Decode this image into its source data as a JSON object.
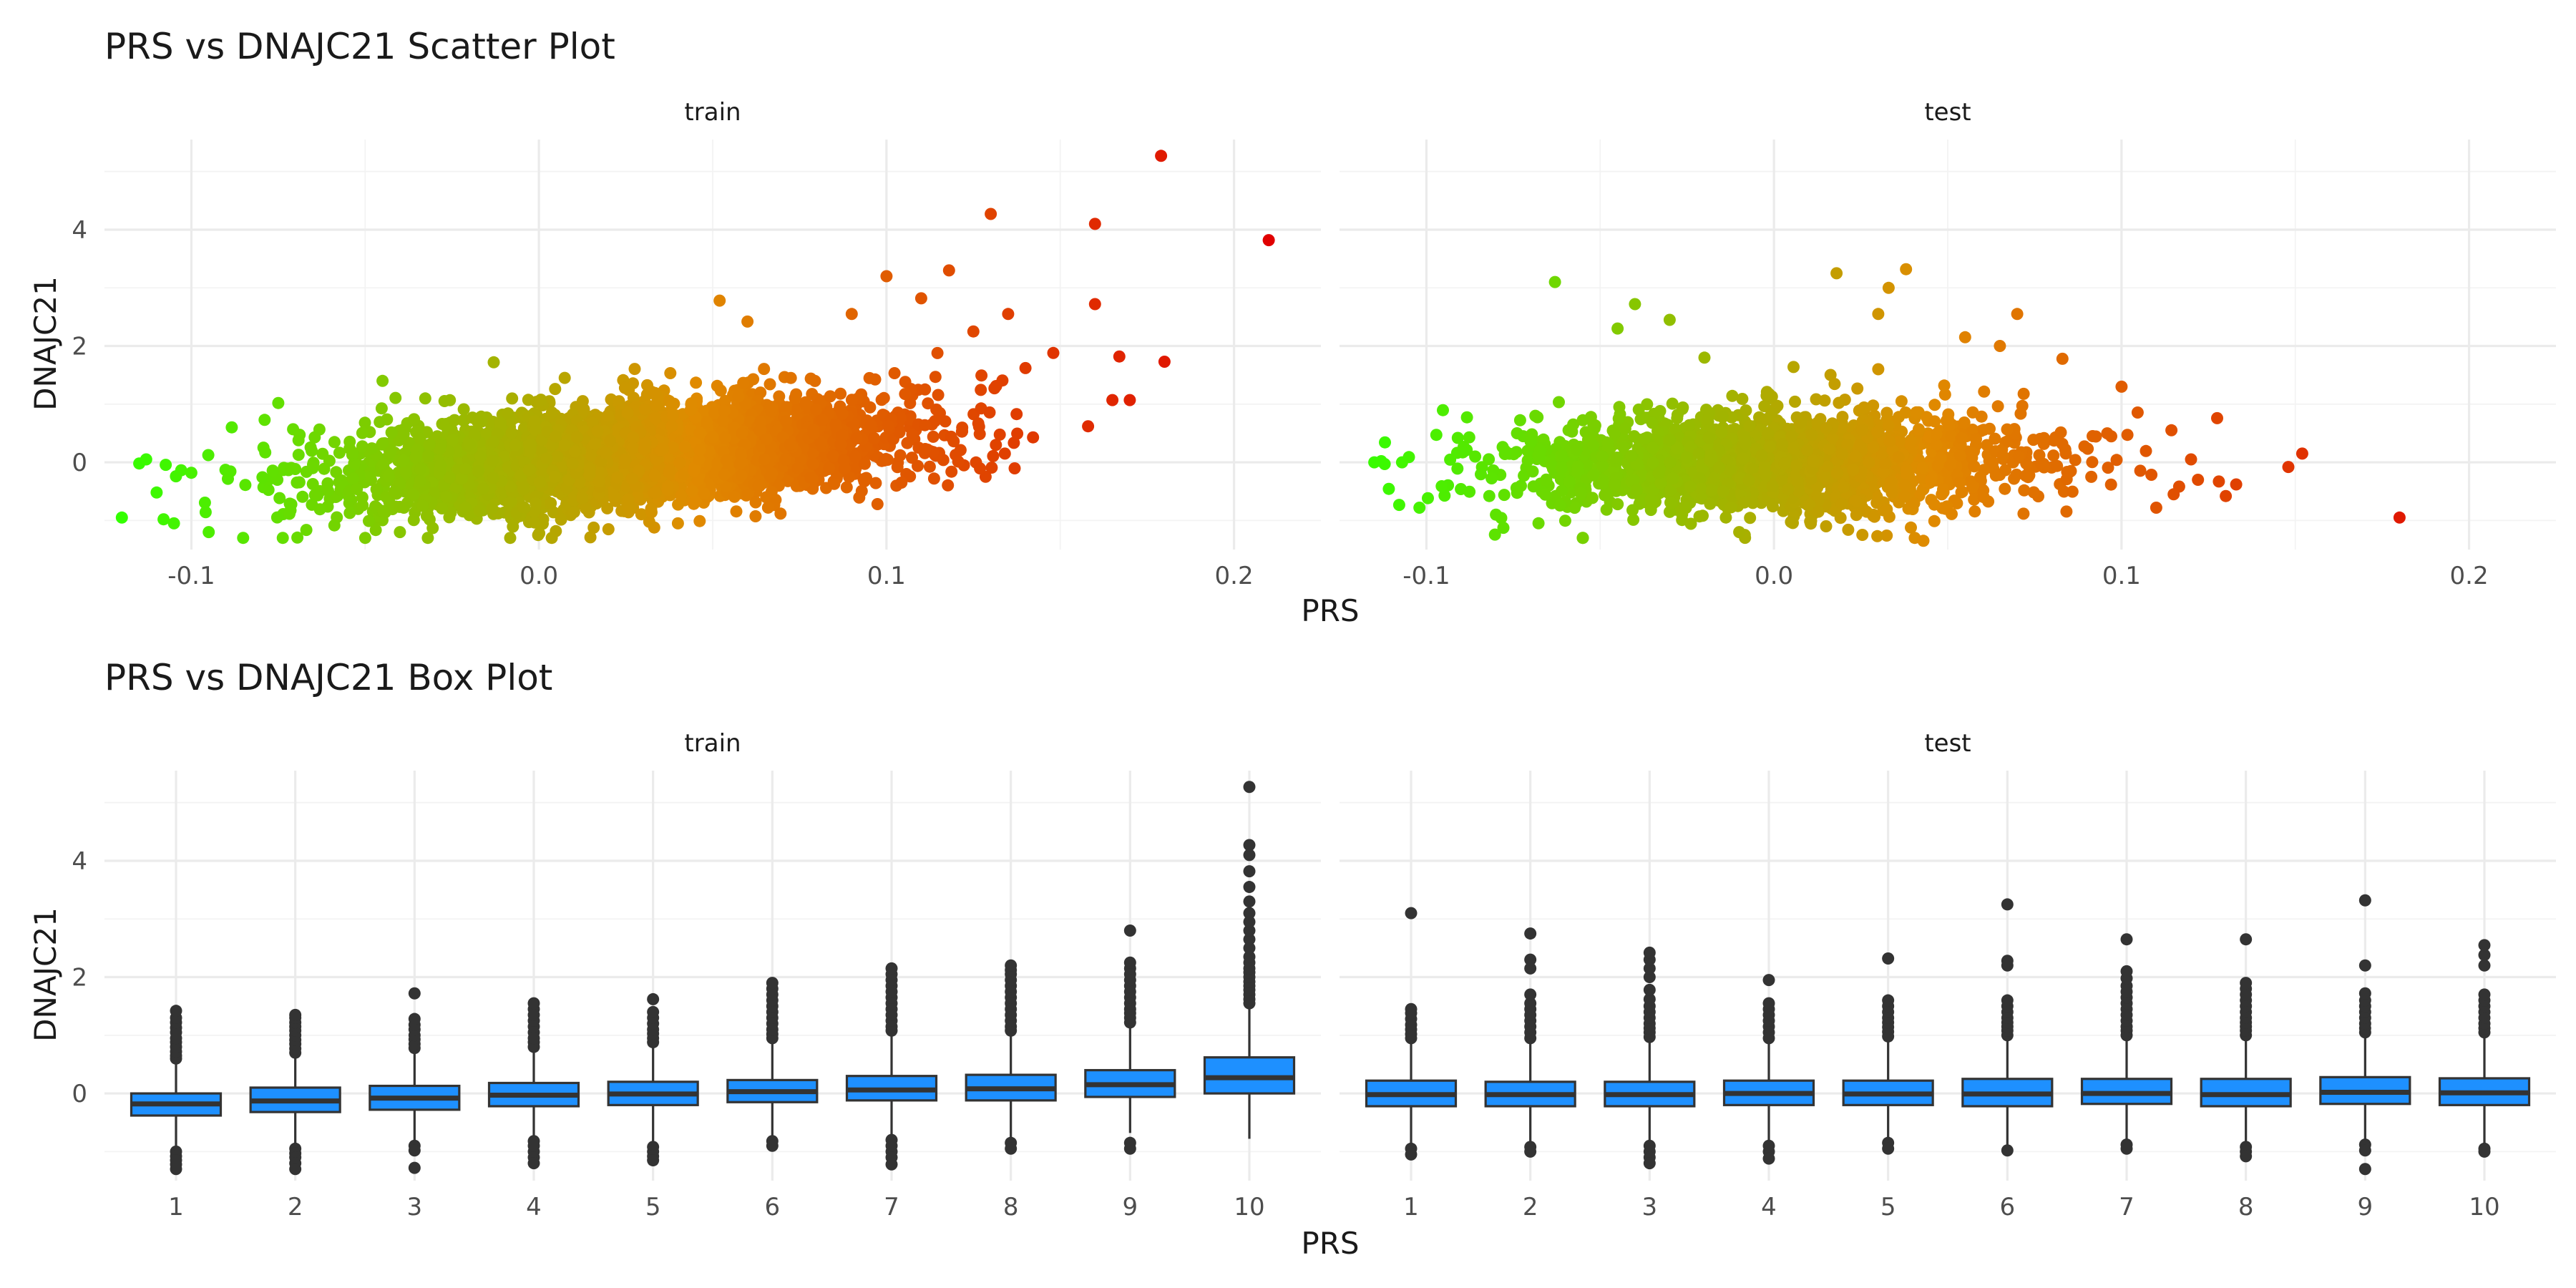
{
  "chart_data": [
    {
      "type": "scatter",
      "title": "PRS vs DNAJC21 Scatter Plot",
      "xlabel": "PRS",
      "ylabel": "DNAJC21",
      "xlim": [
        -0.125,
        0.225
      ],
      "ylim": [
        -1.5,
        5.55
      ],
      "x_ticks": [
        "-0.1",
        "0.0",
        "0.1",
        "0.2"
      ],
      "x_tick_values": [
        -0.1,
        0.0,
        0.1,
        0.2
      ],
      "y_ticks": [
        "0",
        "2",
        "4"
      ],
      "y_tick_values": [
        0,
        2,
        4
      ],
      "color_gradient": [
        "#33ff00",
        "#e08a00",
        "#e00000"
      ],
      "grid": true,
      "panels": [
        {
          "label": "train",
          "cloud": {
            "n": 3800,
            "x_mean": 0.025,
            "x_sd": 0.04,
            "slope": 9.0,
            "noise_sd": 0.42,
            "x_range": [
              -0.12,
              0.145
            ]
          },
          "points": [
            [
              0.179,
              5.27
            ],
            [
              0.13,
              4.27
            ],
            [
              0.16,
              4.1
            ],
            [
              0.21,
              3.82
            ],
            [
              0.118,
              3.3
            ],
            [
              0.16,
              2.72
            ],
            [
              0.167,
              1.82
            ],
            [
              0.18,
              1.73
            ],
            [
              0.165,
              1.07
            ],
            [
              0.17,
              1.07
            ],
            [
              0.158,
              0.62
            ],
            [
              0.135,
              2.55
            ],
            [
              0.14,
              1.62
            ],
            [
              0.148,
              1.88
            ],
            [
              0.11,
              2.82
            ],
            [
              0.1,
              3.2
            ],
            [
              0.09,
              2.55
            ],
            [
              0.125,
              2.25
            ],
            [
              -0.12,
              -0.95
            ],
            [
              -0.115,
              -0.02
            ],
            [
              -0.113,
              0.05
            ],
            [
              -0.108,
              -0.98
            ],
            [
              -0.105,
              -1.05
            ],
            [
              -0.11,
              -0.52
            ],
            [
              -0.1,
              -0.18
            ],
            [
              -0.095,
              -1.2
            ],
            [
              -0.075,
              1.02
            ],
            [
              -0.045,
              1.4
            ],
            [
              -0.013,
              1.72
            ],
            [
              0.06,
              2.42
            ],
            [
              0.052,
              2.78
            ],
            [
              0.02,
              -1.15
            ],
            [
              0.04,
              -1.05
            ],
            [
              -0.04,
              -1.2
            ]
          ]
        },
        {
          "label": "test",
          "cloud": {
            "n": 1800,
            "x_mean": 0.0,
            "x_sd": 0.038,
            "slope": 0.4,
            "noise_sd": 0.45,
            "x_range": [
              -0.115,
              0.14
            ]
          },
          "points": [
            [
              -0.115,
              0.0
            ],
            [
              -0.113,
              0.02
            ],
            [
              -0.112,
              -0.03
            ],
            [
              -0.107,
              0.0
            ],
            [
              -0.102,
              -0.78
            ],
            [
              -0.08,
              -0.9
            ],
            [
              -0.063,
              3.1
            ],
            [
              -0.045,
              2.3
            ],
            [
              -0.04,
              2.72
            ],
            [
              -0.03,
              2.45
            ],
            [
              -0.02,
              1.8
            ],
            [
              0.03,
              1.6
            ],
            [
              0.018,
              3.25
            ],
            [
              0.033,
              3.0
            ],
            [
              0.03,
              2.55
            ],
            [
              0.038,
              3.32
            ],
            [
              0.055,
              2.15
            ],
            [
              0.065,
              2.0
            ],
            [
              0.07,
              2.55
            ],
            [
              0.083,
              1.78
            ],
            [
              0.1,
              1.3
            ],
            [
              0.13,
              -0.58
            ],
            [
              0.128,
              -0.33
            ],
            [
              0.133,
              -0.38
            ],
            [
              0.148,
              -0.08
            ],
            [
              0.152,
              0.15
            ],
            [
              0.18,
              -0.95
            ],
            [
              0.12,
              0.05
            ],
            [
              0.122,
              -0.3
            ],
            [
              0.115,
              -0.55
            ],
            [
              0.11,
              -0.78
            ],
            [
              -0.01,
              -1.2
            ],
            [
              0.015,
              -1.1
            ],
            [
              0.043,
              -1.35
            ]
          ]
        }
      ]
    },
    {
      "type": "box",
      "title": "PRS vs DNAJC21 Box Plot",
      "xlabel": "PRS",
      "ylabel": "DNAJC21",
      "categories": [
        "1",
        "2",
        "3",
        "4",
        "5",
        "6",
        "7",
        "8",
        "9",
        "10"
      ],
      "ylim": [
        -1.5,
        5.55
      ],
      "y_ticks": [
        "0",
        "2",
        "4"
      ],
      "y_tick_values": [
        0,
        2,
        4
      ],
      "box_fill": "#1e90ff",
      "grid": true,
      "panels": [
        {
          "label": "train",
          "boxes": [
            {
              "q1": -0.38,
              "median": -0.18,
              "q3": 0.0,
              "whisker_low": -0.95,
              "whisker_high": 0.55,
              "outliers": [
                0.6,
                0.65,
                0.72,
                0.8,
                0.88,
                0.95,
                1.05,
                1.13,
                1.22,
                1.3,
                1.42,
                -1.0,
                -1.08,
                -1.15,
                -1.22,
                -1.3
              ]
            },
            {
              "q1": -0.32,
              "median": -0.13,
              "q3": 0.1,
              "whisker_low": -0.92,
              "whisker_high": 0.65,
              "outliers": [
                0.7,
                0.77,
                0.85,
                0.92,
                1.0,
                1.08,
                1.15,
                1.22,
                1.3,
                1.35,
                -0.95,
                -1.03,
                -1.1,
                -1.2,
                -1.3
              ]
            },
            {
              "q1": -0.28,
              "median": -0.08,
              "q3": 0.13,
              "whisker_low": -0.85,
              "whisker_high": 0.72,
              "outliers": [
                0.78,
                0.85,
                0.93,
                1.0,
                1.1,
                1.18,
                1.28,
                1.72,
                -0.9,
                -0.98,
                -1.28
              ]
            },
            {
              "q1": -0.22,
              "median": -0.03,
              "q3": 0.18,
              "whisker_low": -0.8,
              "whisker_high": 0.75,
              "outliers": [
                0.8,
                0.88,
                0.95,
                1.05,
                1.15,
                1.25,
                1.35,
                1.45,
                1.55,
                -0.82,
                -0.9,
                -1.0,
                -1.1,
                -1.2
              ]
            },
            {
              "q1": -0.2,
              "median": -0.01,
              "q3": 0.2,
              "whisker_low": -0.85,
              "whisker_high": 0.82,
              "outliers": [
                0.88,
                0.95,
                1.03,
                1.1,
                1.2,
                1.3,
                1.4,
                1.62,
                -0.92,
                -1.0,
                -1.08,
                -1.15
              ]
            },
            {
              "q1": -0.15,
              "median": 0.03,
              "q3": 0.23,
              "whisker_low": -0.75,
              "whisker_high": 0.88,
              "outliers": [
                0.95,
                1.02,
                1.1,
                1.2,
                1.3,
                1.4,
                1.5,
                1.6,
                1.7,
                1.8,
                1.9,
                -0.82,
                -0.9
              ]
            },
            {
              "q1": -0.12,
              "median": 0.06,
              "q3": 0.3,
              "whisker_low": -0.72,
              "whisker_high": 1.02,
              "outliers": [
                1.08,
                1.15,
                1.25,
                1.35,
                1.45,
                1.55,
                1.65,
                1.75,
                1.85,
                1.95,
                2.05,
                2.15,
                -0.8,
                -0.9,
                -1.0,
                -1.1,
                -1.22
              ]
            },
            {
              "q1": -0.12,
              "median": 0.08,
              "q3": 0.32,
              "whisker_low": -0.78,
              "whisker_high": 1.02,
              "outliers": [
                1.08,
                1.15,
                1.25,
                1.35,
                1.45,
                1.55,
                1.65,
                1.75,
                1.85,
                1.95,
                2.05,
                2.12,
                2.2,
                -0.85,
                -0.95
              ]
            },
            {
              "q1": -0.06,
              "median": 0.15,
              "q3": 0.4,
              "whisker_low": -0.68,
              "whisker_high": 1.18,
              "outliers": [
                1.22,
                1.3,
                1.38,
                1.45,
                1.55,
                1.65,
                1.75,
                1.85,
                1.95,
                2.05,
                2.15,
                2.25,
                2.8,
                -0.85,
                -0.95
              ]
            },
            {
              "q1": 0.0,
              "median": 0.27,
              "q3": 0.62,
              "whisker_low": -0.78,
              "whisker_high": 1.5,
              "outliers": [
                1.55,
                1.62,
                1.7,
                1.78,
                1.85,
                1.92,
                2.0,
                2.08,
                2.15,
                2.25,
                2.35,
                2.5,
                2.65,
                2.8,
                2.95,
                3.1,
                3.3,
                3.55,
                3.82,
                4.1,
                4.27,
                5.27
              ]
            }
          ]
        },
        {
          "label": "test",
          "boxes": [
            {
              "q1": -0.22,
              "median": -0.02,
              "q3": 0.22,
              "whisker_low": -0.9,
              "whisker_high": 0.9,
              "outliers": [
                0.95,
                1.02,
                1.1,
                1.18,
                1.28,
                1.38,
                1.45,
                3.1,
                -0.95,
                -1.05
              ]
            },
            {
              "q1": -0.22,
              "median": -0.02,
              "q3": 0.2,
              "whisker_low": -0.88,
              "whisker_high": 0.9,
              "outliers": [
                0.95,
                1.05,
                1.15,
                1.25,
                1.35,
                1.45,
                1.55,
                1.7,
                2.15,
                2.3,
                2.75,
                -0.92,
                -1.0
              ]
            },
            {
              "q1": -0.22,
              "median": -0.02,
              "q3": 0.2,
              "whisker_low": -0.85,
              "whisker_high": 0.92,
              "outliers": [
                0.97,
                1.05,
                1.12,
                1.2,
                1.3,
                1.4,
                1.5,
                1.62,
                1.78,
                2.0,
                2.15,
                2.3,
                2.42,
                -0.9,
                -1.0,
                -1.1,
                -1.2
              ]
            },
            {
              "q1": -0.2,
              "median": 0.0,
              "q3": 0.22,
              "whisker_low": -0.82,
              "whisker_high": 0.9,
              "outliers": [
                0.95,
                1.05,
                1.15,
                1.25,
                1.35,
                1.45,
                1.55,
                1.95,
                -0.9,
                -1.0,
                -1.12
              ]
            },
            {
              "q1": -0.2,
              "median": -0.01,
              "q3": 0.22,
              "whisker_low": -0.8,
              "whisker_high": 0.92,
              "outliers": [
                0.98,
                1.06,
                1.14,
                1.22,
                1.3,
                1.4,
                1.5,
                1.6,
                2.32,
                -0.85,
                -0.95
              ]
            },
            {
              "q1": -0.22,
              "median": -0.01,
              "q3": 0.25,
              "whisker_low": -0.88,
              "whisker_high": 0.95,
              "outliers": [
                1.0,
                1.08,
                1.15,
                1.22,
                1.3,
                1.4,
                1.5,
                1.6,
                2.2,
                2.28,
                3.25,
                -0.98
              ]
            },
            {
              "q1": -0.18,
              "median": 0.0,
              "q3": 0.25,
              "whisker_low": -0.82,
              "whisker_high": 0.95,
              "outliers": [
                1.0,
                1.08,
                1.15,
                1.25,
                1.35,
                1.45,
                1.55,
                1.65,
                1.75,
                1.85,
                1.98,
                2.1,
                2.65,
                -0.88,
                -0.95
              ]
            },
            {
              "q1": -0.22,
              "median": -0.02,
              "q3": 0.25,
              "whisker_low": -0.85,
              "whisker_high": 0.95,
              "outliers": [
                1.0,
                1.08,
                1.15,
                1.22,
                1.3,
                1.4,
                1.5,
                1.6,
                1.7,
                1.8,
                1.9,
                2.65,
                -0.92,
                -1.0,
                -1.08
              ]
            },
            {
              "q1": -0.18,
              "median": 0.02,
              "q3": 0.28,
              "whisker_low": -0.82,
              "whisker_high": 0.98,
              "outliers": [
                1.05,
                1.12,
                1.2,
                1.3,
                1.4,
                1.5,
                1.6,
                1.72,
                2.2,
                3.32,
                -0.88,
                -0.98,
                -1.3
              ]
            },
            {
              "q1": -0.2,
              "median": 0.01,
              "q3": 0.26,
              "whisker_low": -0.88,
              "whisker_high": 0.98,
              "outliers": [
                1.05,
                1.12,
                1.2,
                1.3,
                1.4,
                1.5,
                1.6,
                1.7,
                2.2,
                2.38,
                2.55,
                -0.95,
                -1.0
              ]
            }
          ]
        }
      ]
    }
  ]
}
